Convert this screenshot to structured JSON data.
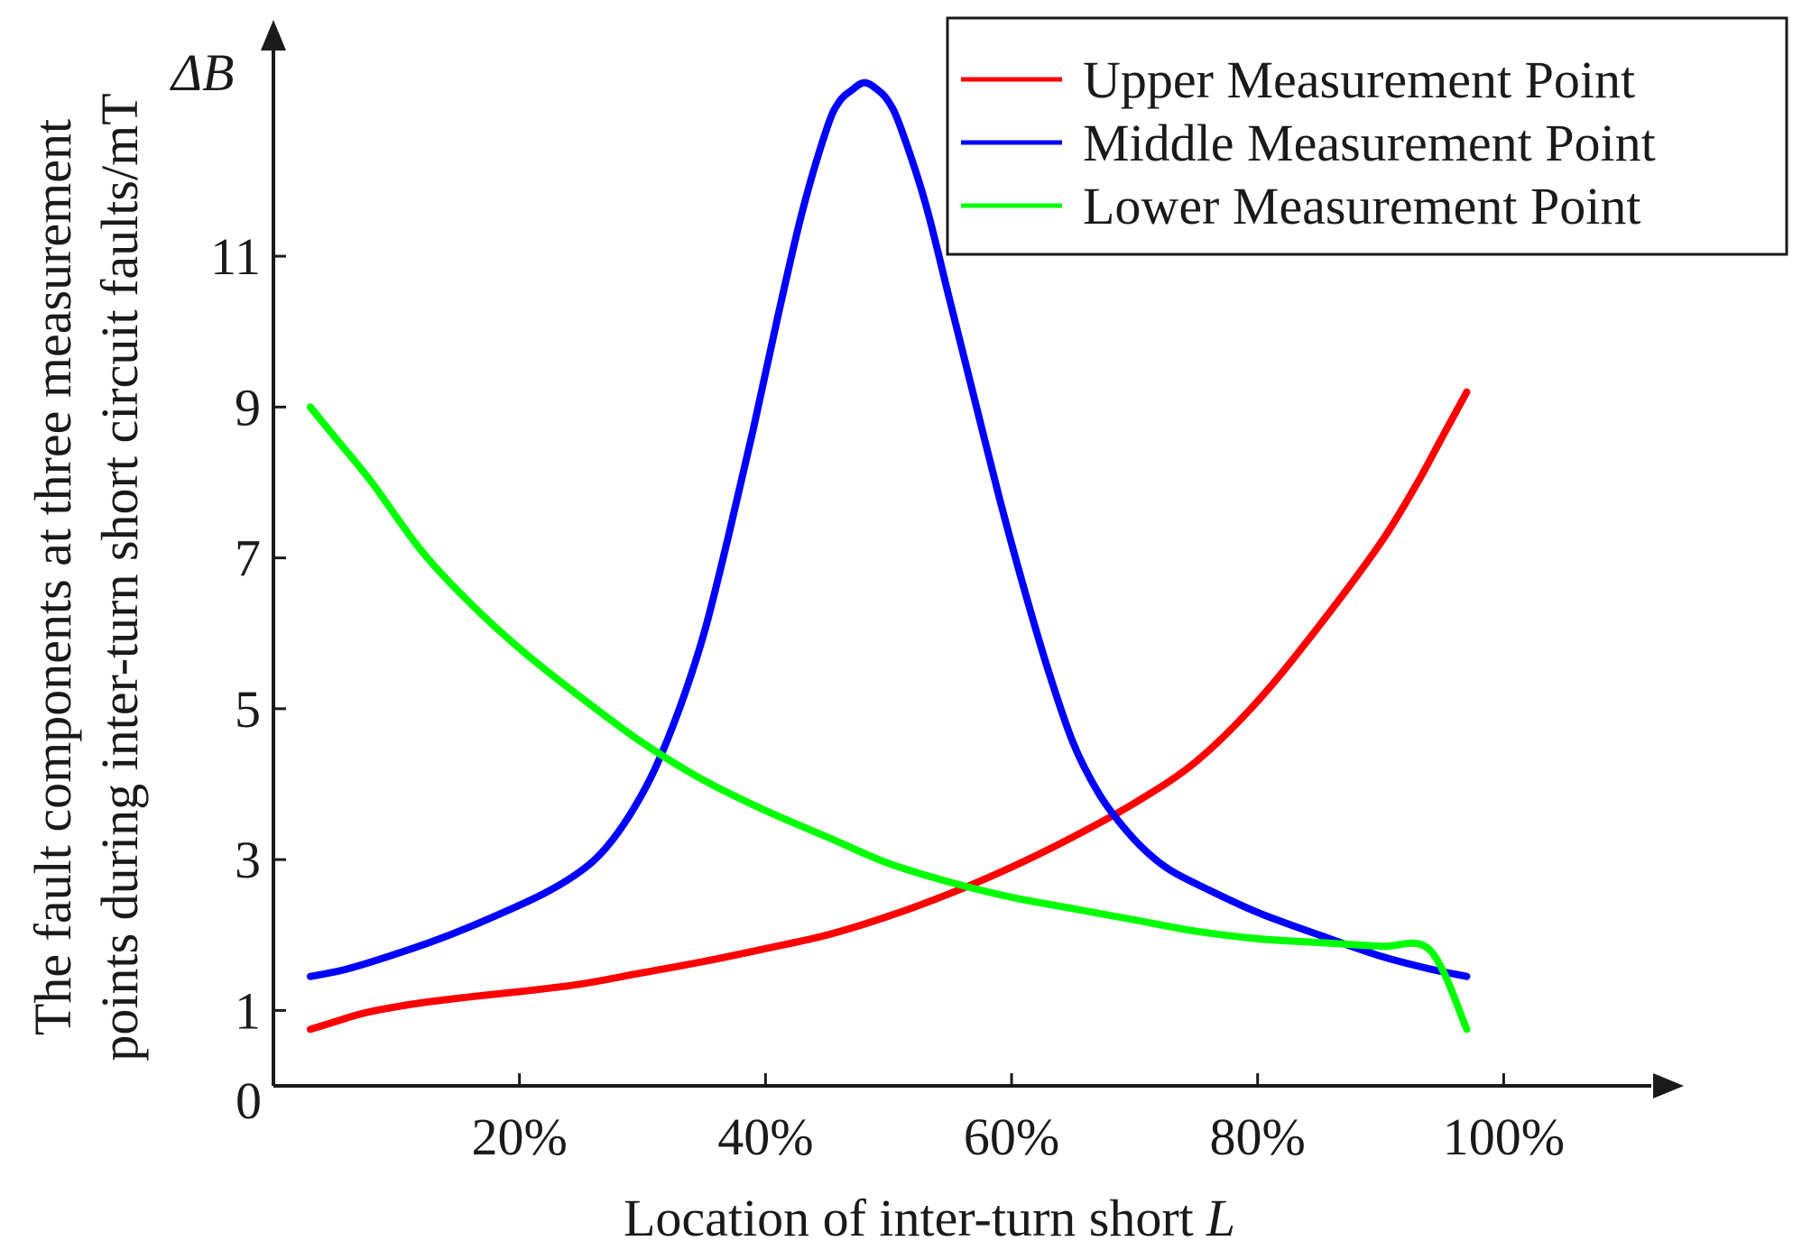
{
  "chart_data": {
    "type": "line",
    "title": "",
    "xlabel": "Location of inter-turn short",
    "xlabel_var": "L",
    "ylabel_line1": "The fault components at three measurement",
    "ylabel_line2": "points during inter-turn short circuit faults/mT",
    "ylabel_symbol": "ΔB",
    "xlim": [
      0,
      112
    ],
    "ylim": [
      0,
      13.5
    ],
    "x_ticks": [
      20,
      40,
      60,
      80,
      100
    ],
    "x_tick_labels": [
      "20%",
      "40%",
      "60%",
      "80%",
      "100%"
    ],
    "y_ticks": [
      1,
      3,
      5,
      7,
      9,
      11
    ],
    "y_tick_labels": [
      "1",
      "3",
      "5",
      "7",
      "9",
      "11"
    ],
    "origin_label": "0",
    "legend_position": "top-right",
    "series": [
      {
        "name": "Upper Measurement Point",
        "color": "#ff0000",
        "x": [
          3,
          5,
          7,
          9,
          12,
          16,
          20,
          25,
          30,
          35,
          40,
          45,
          50,
          55,
          60,
          65,
          70,
          75,
          80,
          85,
          90,
          93,
          95,
          97
        ],
        "y": [
          0.75,
          0.85,
          0.95,
          1.02,
          1.1,
          1.18,
          1.25,
          1.35,
          1.5,
          1.65,
          1.82,
          2.0,
          2.25,
          2.55,
          2.9,
          3.3,
          3.75,
          4.3,
          5.1,
          6.1,
          7.2,
          8.0,
          8.6,
          9.2
        ]
      },
      {
        "name": "Middle Measurement Point",
        "color": "#0000ff",
        "x": [
          3,
          6,
          10,
          14,
          18,
          22,
          25,
          27,
          29,
          31,
          33,
          35,
          37,
          39,
          41,
          43,
          45,
          46,
          47,
          48,
          49,
          50,
          51,
          53,
          55,
          57,
          59,
          61,
          63,
          65,
          67,
          69,
          71,
          73,
          76,
          80,
          85,
          90,
          94,
          97
        ],
        "y": [
          1.45,
          1.55,
          1.75,
          1.98,
          2.25,
          2.55,
          2.85,
          3.15,
          3.6,
          4.2,
          5.0,
          6.0,
          7.3,
          8.7,
          10.2,
          11.6,
          12.7,
          13.05,
          13.2,
          13.3,
          13.22,
          13.05,
          12.7,
          11.7,
          10.4,
          9.1,
          7.8,
          6.6,
          5.5,
          4.55,
          3.9,
          3.45,
          3.1,
          2.85,
          2.6,
          2.3,
          2.0,
          1.72,
          1.55,
          1.45
        ]
      },
      {
        "name": "Lower Measurement Point",
        "color": "#00ff00",
        "x": [
          3,
          5,
          8,
          12,
          16,
          20,
          25,
          30,
          35,
          40,
          45,
          50,
          55,
          60,
          65,
          70,
          75,
          80,
          85,
          90,
          94,
          97
        ],
        "y": [
          9.0,
          8.6,
          8.0,
          7.1,
          6.4,
          5.8,
          5.15,
          4.55,
          4.05,
          3.65,
          3.3,
          2.95,
          2.7,
          2.5,
          2.35,
          2.2,
          2.05,
          1.95,
          1.9,
          1.85,
          1.8,
          0.75
        ]
      }
    ]
  }
}
